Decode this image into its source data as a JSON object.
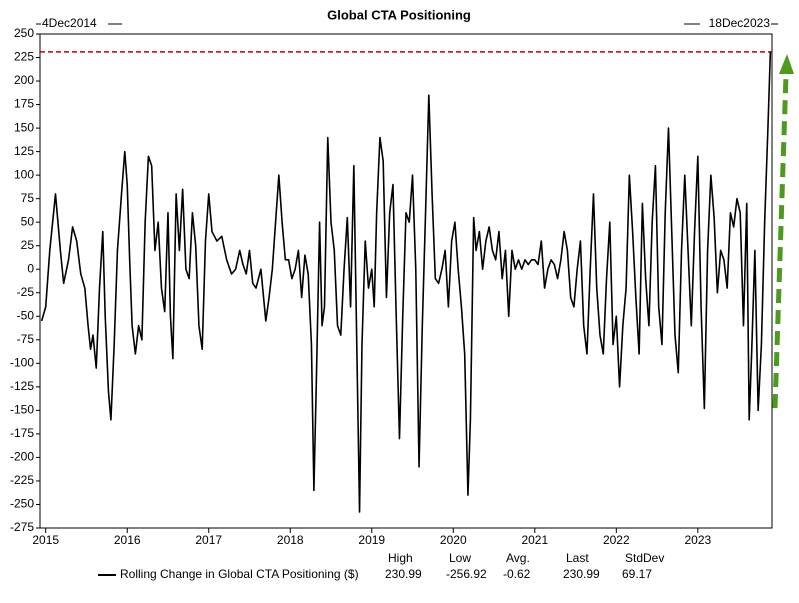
{
  "chart_data": {
    "type": "line",
    "title": "Global CTA Positioning",
    "start_label": "4Dec2014",
    "end_label": "18Dec2023",
    "x": [
      2014.95,
      2015.0,
      2015.05,
      2015.12,
      2015.18,
      2015.22,
      2015.28,
      2015.33,
      2015.38,
      2015.43,
      2015.48,
      2015.52,
      2015.55,
      2015.58,
      2015.62,
      2015.66,
      2015.7,
      2015.73,
      2015.77,
      2015.8,
      2015.84,
      2015.88,
      2015.93,
      2015.97,
      2016.0,
      2016.03,
      2016.06,
      2016.1,
      2016.14,
      2016.18,
      2016.22,
      2016.26,
      2016.3,
      2016.34,
      2016.38,
      2016.42,
      2016.46,
      2016.5,
      2016.53,
      2016.56,
      2016.6,
      2016.64,
      2016.68,
      2016.72,
      2016.76,
      2016.8,
      2016.84,
      2016.88,
      2016.92,
      2016.96,
      2017.0,
      2017.04,
      2017.1,
      2017.16,
      2017.22,
      2017.28,
      2017.33,
      2017.38,
      2017.42,
      2017.46,
      2017.5,
      2017.54,
      2017.58,
      2017.64,
      2017.7,
      2017.74,
      2017.78,
      2017.82,
      2017.86,
      2017.9,
      2017.94,
      2017.98,
      2018.02,
      2018.06,
      2018.1,
      2018.14,
      2018.18,
      2018.22,
      2018.26,
      2018.29,
      2018.32,
      2018.36,
      2018.39,
      2018.42,
      2018.46,
      2018.5,
      2018.54,
      2018.58,
      2018.62,
      2018.66,
      2018.7,
      2018.74,
      2018.78,
      2018.82,
      2018.85,
      2018.88,
      2018.92,
      2018.96,
      2019.0,
      2019.03,
      2019.06,
      2019.1,
      2019.14,
      2019.18,
      2019.22,
      2019.26,
      2019.3,
      2019.34,
      2019.38,
      2019.42,
      2019.46,
      2019.5,
      2019.54,
      2019.58,
      2019.62,
      2019.66,
      2019.7,
      2019.74,
      2019.78,
      2019.82,
      2019.86,
      2019.9,
      2019.94,
      2019.98,
      2020.02,
      2020.06,
      2020.1,
      2020.14,
      2020.18,
      2020.21,
      2020.25,
      2020.28,
      2020.32,
      2020.36,
      2020.4,
      2020.44,
      2020.48,
      2020.52,
      2020.56,
      2020.6,
      2020.64,
      2020.68,
      2020.72,
      2020.76,
      2020.8,
      2020.84,
      2020.88,
      2020.92,
      2020.96,
      2021.0,
      2021.04,
      2021.08,
      2021.12,
      2021.16,
      2021.2,
      2021.24,
      2021.28,
      2021.32,
      2021.36,
      2021.4,
      2021.44,
      2021.48,
      2021.52,
      2021.56,
      2021.6,
      2021.64,
      2021.68,
      2021.72,
      2021.76,
      2021.8,
      2021.84,
      2021.88,
      2021.92,
      2021.96,
      2022.0,
      2022.04,
      2022.08,
      2022.12,
      2022.16,
      2022.2,
      2022.24,
      2022.28,
      2022.32,
      2022.36,
      2022.4,
      2022.44,
      2022.48,
      2022.52,
      2022.56,
      2022.6,
      2022.64,
      2022.68,
      2022.72,
      2022.76,
      2022.8,
      2022.84,
      2022.88,
      2022.92,
      2022.96,
      2023.0,
      2023.04,
      2023.08,
      2023.12,
      2023.16,
      2023.2,
      2023.24,
      2023.28,
      2023.32,
      2023.36,
      2023.4,
      2023.44,
      2023.48,
      2023.52,
      2023.56,
      2023.6,
      2023.63,
      2023.66,
      2023.7,
      2023.74,
      2023.78,
      2023.82,
      2023.86,
      2023.89
    ],
    "series": [
      {
        "name": "Rolling Change in Global CTA Positioning ($)",
        "color": "#000000",
        "values": [
          -55,
          -40,
          20,
          80,
          20,
          -15,
          10,
          45,
          30,
          -5,
          -20,
          -60,
          -85,
          -70,
          -105,
          -20,
          40,
          -50,
          -130,
          -160,
          -80,
          20,
          80,
          125,
          90,
          10,
          -60,
          -90,
          -60,
          -75,
          50,
          120,
          110,
          20,
          50,
          -20,
          -45,
          60,
          -50,
          -95,
          80,
          20,
          85,
          0,
          -10,
          60,
          25,
          -60,
          -85,
          30,
          80,
          40,
          30,
          35,
          10,
          -5,
          0,
          20,
          5,
          -5,
          20,
          -15,
          -20,
          0,
          -55,
          -30,
          0,
          50,
          100,
          50,
          10,
          10,
          -10,
          0,
          20,
          -30,
          15,
          -5,
          -80,
          -235,
          -120,
          50,
          -60,
          -40,
          140,
          50,
          20,
          -60,
          -70,
          0,
          55,
          -40,
          110,
          -100,
          -258,
          -80,
          30,
          -20,
          0,
          -40,
          60,
          140,
          115,
          -30,
          60,
          90,
          -50,
          -180,
          -50,
          60,
          50,
          100,
          0,
          -210,
          -60,
          60,
          185,
          80,
          -10,
          -15,
          0,
          20,
          -40,
          30,
          50,
          0,
          -40,
          -90,
          -240,
          -160,
          55,
          20,
          40,
          0,
          30,
          45,
          20,
          10,
          40,
          -10,
          20,
          -50,
          20,
          0,
          10,
          0,
          10,
          5,
          10,
          10,
          5,
          30,
          -20,
          0,
          10,
          5,
          -10,
          10,
          40,
          20,
          -30,
          -40,
          0,
          30,
          -60,
          -90,
          0,
          80,
          -20,
          -70,
          -90,
          -10,
          50,
          -80,
          -50,
          -125,
          -60,
          -20,
          100,
          40,
          -30,
          -90,
          70,
          -10,
          -60,
          50,
          110,
          -40,
          -80,
          60,
          150,
          40,
          -70,
          -110,
          20,
          100,
          20,
          -60,
          40,
          120,
          -40,
          -148,
          20,
          100,
          55,
          -25,
          20,
          10,
          -20,
          60,
          45,
          75,
          60,
          -60,
          70,
          -160,
          -90,
          20,
          -150,
          -80,
          50,
          150,
          230.99
        ]
      }
    ],
    "xlim": [
      2014.93,
      2023.91
    ],
    "xticks": [
      2015,
      2016,
      2017,
      2018,
      2019,
      2020,
      2021,
      2022,
      2023
    ],
    "ylim": [
      -275,
      250
    ],
    "yticks": [
      -275,
      -250,
      -225,
      -200,
      -175,
      -150,
      -125,
      -100,
      -75,
      -50,
      -25,
      0,
      25,
      50,
      75,
      100,
      125,
      150,
      175,
      200,
      225,
      250
    ],
    "reference_line": {
      "value": 230.99,
      "color": "#c00000"
    },
    "stats": {
      "headers": [
        "High",
        "Low",
        "Avg.",
        "Last",
        "StdDev"
      ],
      "values": [
        230.99,
        -256.92,
        -0.62,
        230.99,
        69.17
      ]
    }
  }
}
